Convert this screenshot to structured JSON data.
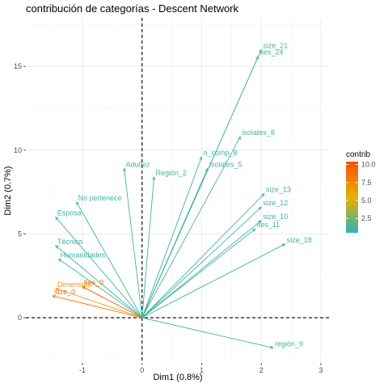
{
  "chart_data": {
    "type": "scatter",
    "title": "contribución de categorías  - Descent Network",
    "xlabel": "Dim1 (0.8%)",
    "ylabel": "Dim2 (0.7%)",
    "xlim": [
      -1.95,
      3.15
    ],
    "ylim": [
      -2.7,
      17.9
    ],
    "xticks": [
      -1,
      0,
      1,
      2,
      3
    ],
    "yticks": [
      0,
      5,
      10,
      15
    ],
    "grid": true,
    "reference_lines": {
      "x": 0,
      "y": 0,
      "style": "dashed"
    },
    "legend": {
      "title": "contrib",
      "placement": "right",
      "ticks": [
        2.5,
        5.0,
        7.5,
        10.0
      ],
      "range": [
        0.5,
        10.4
      ],
      "colors": [
        "#2fb3b5",
        "#e6b000",
        "#fc4e07"
      ]
    },
    "points": [
      {
        "label": "size_21",
        "x": 2.0,
        "y": 16.0,
        "contrib": 1.3
      },
      {
        "label": "ties_24",
        "x": 1.95,
        "y": 15.6,
        "contrib": 1.3
      },
      {
        "label": "isolates_8",
        "x": 1.65,
        "y": 10.8,
        "contrib": 1.2
      },
      {
        "label": "n_comp_8",
        "x": 1.0,
        "y": 9.6,
        "contrib": 1.0
      },
      {
        "label": "isolates_5",
        "x": 1.1,
        "y": 8.9,
        "contrib": 1.0
      },
      {
        "label": "size_13",
        "x": 2.05,
        "y": 7.4,
        "contrib": 1.0
      },
      {
        "label": "size_12",
        "x": 2.0,
        "y": 6.6,
        "contrib": 1.0
      },
      {
        "label": "size_10",
        "x": 2.0,
        "y": 5.8,
        "contrib": 1.0
      },
      {
        "label": "size_18",
        "x": 2.4,
        "y": 4.4,
        "contrib": 1.0
      },
      {
        "label": "ties_11",
        "x": 1.9,
        "y": 5.3,
        "contrib": 1.0
      },
      {
        "label": "región_9",
        "x": 2.2,
        "y": -1.8,
        "contrib": 1.0
      },
      {
        "label": "No pertenece",
        "x": -1.1,
        "y": 6.9,
        "contrib": 1.0
      },
      {
        "label": "Esposa",
        "x": -1.45,
        "y": 6.0,
        "contrib": 1.0
      },
      {
        "label": "Técnico",
        "x": -1.45,
        "y": 4.3,
        "contrib": 1.0
      },
      {
        "label": "Humanidades",
        "x": -1.4,
        "y": 3.5,
        "contrib": 1.0
      },
      {
        "label": "ties_0",
        "x": -1.0,
        "y": 1.85,
        "contrib": 9.5
      },
      {
        "label": "size_0",
        "x": -1.5,
        "y": 1.3,
        "contrib": 8.5
      },
      {
        "label": "Dimensión",
        "x": -1.45,
        "y": 1.75,
        "contrib": 6.5
      },
      {
        "label": "Adultez",
        "x": -0.3,
        "y": 8.9,
        "contrib": 1.0
      },
      {
        "label": "Región_2",
        "x": 0.2,
        "y": 8.4,
        "contrib": 1.0
      }
    ]
  }
}
